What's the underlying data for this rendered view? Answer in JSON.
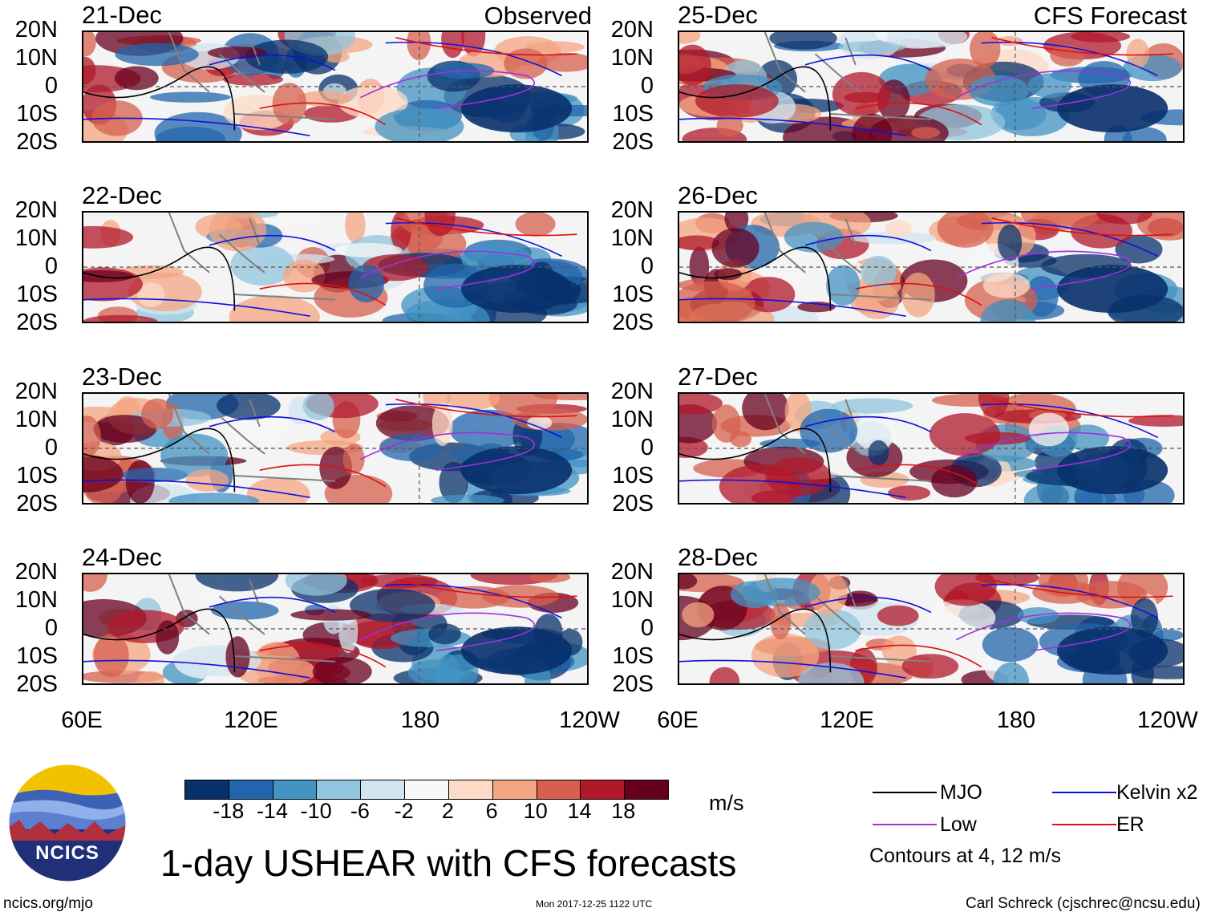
{
  "colors": {
    "mjo": "#000000",
    "low": "#a030e0",
    "kelvin": "#1010dd",
    "er": "#dd1010",
    "coast": "#808080"
  },
  "left_header": {
    "title": "Observed"
  },
  "right_header": {
    "title": "CFS Forecast"
  },
  "lat_labels": [
    "20N",
    "10N",
    "0",
    "10S",
    "20S"
  ],
  "lon_labels": [
    "60E",
    "120E",
    "180",
    "120W"
  ],
  "panels_left": [
    {
      "date": "21-Dec"
    },
    {
      "date": "22-Dec"
    },
    {
      "date": "23-Dec"
    },
    {
      "date": "24-Dec"
    }
  ],
  "panels_right": [
    {
      "date": "25-Dec"
    },
    {
      "date": "26-Dec"
    },
    {
      "date": "27-Dec"
    },
    {
      "date": "28-Dec"
    }
  ],
  "colorbar": {
    "colors": [
      "#08306b",
      "#2166ac",
      "#4393c3",
      "#92c5de",
      "#d1e5f0",
      "#f7f7f7",
      "#fddbc7",
      "#f4a582",
      "#d6604d",
      "#b2182b",
      "#67001f"
    ],
    "ticks": [
      "-18",
      "-14",
      "-10",
      "-6",
      "-2",
      "2",
      "6",
      "10",
      "14",
      "18"
    ],
    "units": "m/s"
  },
  "legend": {
    "mjo": "MJO",
    "kelvin": "Kelvin x2",
    "low": "Low",
    "er": "ER",
    "note": "Contours at 4, 12 m/s"
  },
  "logo": {
    "text": "NCICS"
  },
  "main_title": "1-day USHEAR with CFS forecasts",
  "footer": {
    "url": "ncics.org/mjo",
    "timestamp": "Mon 2017-12-25 1122 UTC",
    "credit": "Carl Schreck (cjschrec@ncsu.edu)"
  }
}
